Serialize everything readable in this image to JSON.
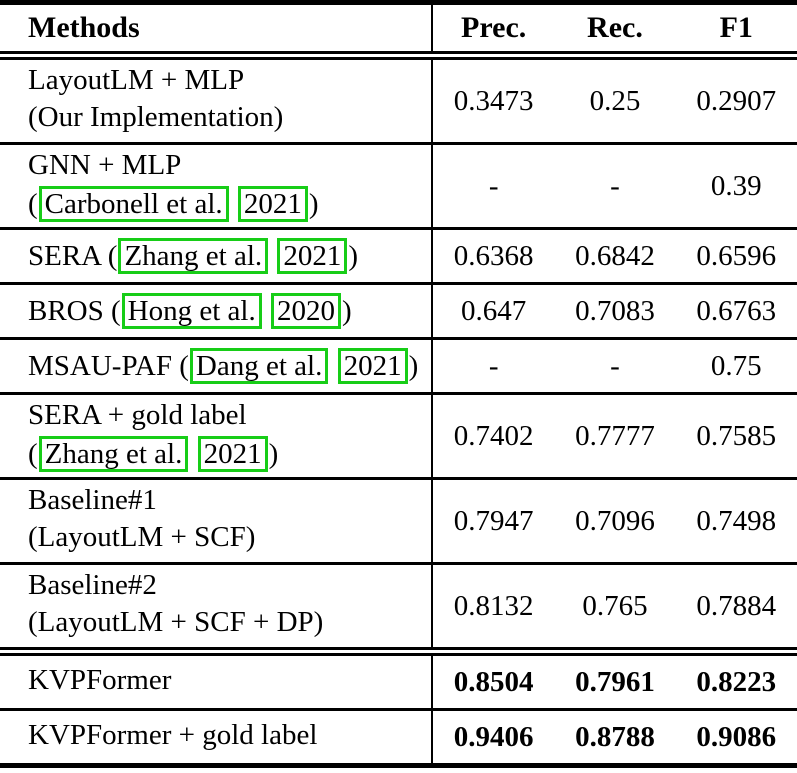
{
  "page": {
    "background": "#ffffff",
    "text_color": "#000000",
    "link_box_color": "#17cd17"
  },
  "table": {
    "header": {
      "methods_label": "Methods",
      "columns": [
        "Prec.",
        "Rec.",
        "F1"
      ]
    },
    "rows": [
      {
        "lines": [
          [
            {
              "t": "LayoutLM + MLP"
            }
          ],
          [
            {
              "t": "(Our Implementation)"
            }
          ]
        ],
        "values": [
          "0.3473",
          "0.25",
          "0.2907"
        ],
        "bold_values": false,
        "rule_after": "thin"
      },
      {
        "lines": [
          [
            {
              "t": "GNN + MLP"
            }
          ],
          [
            {
              "t": "("
            },
            {
              "t": "Carbonell et al.",
              "box": true
            },
            {
              "t": " "
            },
            {
              "t": "2021",
              "box": true
            },
            {
              "t": ")"
            }
          ]
        ],
        "values": [
          "-",
          "-",
          "0.39"
        ],
        "bold_values": false,
        "rule_after": "thin"
      },
      {
        "lines": [
          [
            {
              "t": "SERA ("
            },
            {
              "t": "Zhang et al.",
              "box": true
            },
            {
              "t": " "
            },
            {
              "t": "2021",
              "box": true
            },
            {
              "t": ")"
            }
          ]
        ],
        "values": [
          "0.6368",
          "0.6842",
          "0.6596"
        ],
        "bold_values": false,
        "rule_after": "thin"
      },
      {
        "lines": [
          [
            {
              "t": "BROS ("
            },
            {
              "t": "Hong et al.",
              "box": true
            },
            {
              "t": " "
            },
            {
              "t": "2020",
              "box": true
            },
            {
              "t": ")"
            }
          ]
        ],
        "values": [
          "0.647",
          "0.7083",
          "0.6763"
        ],
        "bold_values": false,
        "rule_after": "thin"
      },
      {
        "lines": [
          [
            {
              "t": "MSAU-PAF ("
            },
            {
              "t": "Dang et al.",
              "box": true
            },
            {
              "t": " "
            },
            {
              "t": "2021",
              "box": true
            },
            {
              "t": ")"
            }
          ]
        ],
        "values": [
          "-",
          "-",
          "0.75"
        ],
        "bold_values": false,
        "rule_after": "thin"
      },
      {
        "lines": [
          [
            {
              "t": "SERA + gold label"
            }
          ],
          [
            {
              "t": "("
            },
            {
              "t": "Zhang et al.",
              "box": true
            },
            {
              "t": " "
            },
            {
              "t": "2021",
              "box": true
            },
            {
              "t": ")"
            }
          ]
        ],
        "values": [
          "0.7402",
          "0.7777",
          "0.7585"
        ],
        "bold_values": false,
        "rule_after": "thin"
      },
      {
        "lines": [
          [
            {
              "t": "Baseline#1"
            }
          ],
          [
            {
              "t": "(LayoutLM + SCF)"
            }
          ]
        ],
        "values": [
          "0.7947",
          "0.7096",
          "0.7498"
        ],
        "bold_values": false,
        "rule_after": "thin"
      },
      {
        "lines": [
          [
            {
              "t": "Baseline#2"
            }
          ],
          [
            {
              "t": "(LayoutLM + SCF + DP)"
            }
          ]
        ],
        "values": [
          "0.8132",
          "0.765",
          "0.7884"
        ],
        "bold_values": false,
        "rule_after": "double"
      },
      {
        "lines": [
          [
            {
              "t": "KVPFormer"
            }
          ]
        ],
        "values": [
          "0.8504",
          "0.7961",
          "0.8223"
        ],
        "bold_values": true,
        "rule_after": "thin"
      },
      {
        "lines": [
          [
            {
              "t": "KVPFormer + gold label"
            }
          ]
        ],
        "values": [
          "0.9406",
          "0.8788",
          "0.9086"
        ],
        "bold_values": true,
        "rule_after": "thick"
      }
    ]
  }
}
